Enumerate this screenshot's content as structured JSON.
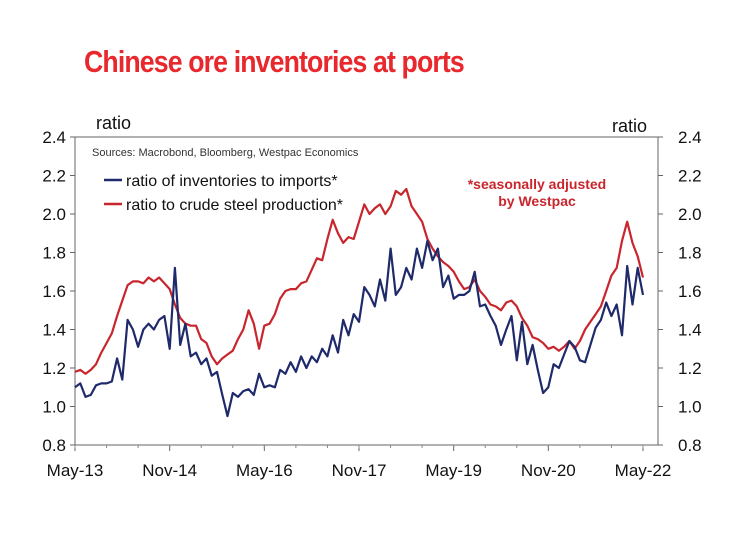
{
  "title": "Chinese ore inventories at ports",
  "colors": {
    "title": "#e8282d",
    "inventories_series": "#1f2a6b",
    "steel_series": "#c8262d",
    "annotation": "#c8262d",
    "axis": "#555555"
  },
  "chart_data": {
    "type": "line",
    "title": "Chinese ore inventories at ports",
    "ylabel_left": "ratio",
    "ylabel_right": "ratio",
    "source": "Sources: Macrobond, Bloomberg, Westpac Economics",
    "annotation": [
      "*seasonally adjusted",
      "by Westpac"
    ],
    "ylim": [
      0.8,
      2.4
    ],
    "yticks": [
      "0.8",
      "1.0",
      "1.2",
      "1.4",
      "1.6",
      "1.8",
      "2.0",
      "2.2",
      "2.4"
    ],
    "xlim": [
      "2013-05",
      "2022-05"
    ],
    "xticks": [
      "May-13",
      "Nov-14",
      "May-16",
      "Nov-17",
      "May-19",
      "Nov-20",
      "May-22"
    ],
    "legend_position": "top-left",
    "grid": false,
    "series": [
      {
        "name": "ratio of inventories to imports*",
        "color": "#1f2a6b",
        "points": [
          [
            "2013-05",
            1.1
          ],
          [
            "2013-06",
            1.12
          ],
          [
            "2013-07",
            1.05
          ],
          [
            "2013-08",
            1.06
          ],
          [
            "2013-09",
            1.11
          ],
          [
            "2013-10",
            1.12
          ],
          [
            "2013-11",
            1.12
          ],
          [
            "2013-12",
            1.13
          ],
          [
            "2014-01",
            1.25
          ],
          [
            "2014-02",
            1.14
          ],
          [
            "2014-03",
            1.45
          ],
          [
            "2014-04",
            1.4
          ],
          [
            "2014-05",
            1.31
          ],
          [
            "2014-06",
            1.4
          ],
          [
            "2014-07",
            1.43
          ],
          [
            "2014-08",
            1.4
          ],
          [
            "2014-09",
            1.45
          ],
          [
            "2014-10",
            1.47
          ],
          [
            "2014-11",
            1.3
          ],
          [
            "2014-12",
            1.72
          ],
          [
            "2015-01",
            1.32
          ],
          [
            "2015-02",
            1.43
          ],
          [
            "2015-03",
            1.26
          ],
          [
            "2015-04",
            1.28
          ],
          [
            "2015-05",
            1.22
          ],
          [
            "2015-06",
            1.25
          ],
          [
            "2015-07",
            1.16
          ],
          [
            "2015-08",
            1.18
          ],
          [
            "2015-09",
            1.06
          ],
          [
            "2015-10",
            0.95
          ],
          [
            "2015-11",
            1.07
          ],
          [
            "2015-12",
            1.05
          ],
          [
            "2016-01",
            1.08
          ],
          [
            "2016-02",
            1.09
          ],
          [
            "2016-03",
            1.06
          ],
          [
            "2016-04",
            1.17
          ],
          [
            "2016-05",
            1.1
          ],
          [
            "2016-06",
            1.11
          ],
          [
            "2016-07",
            1.1
          ],
          [
            "2016-08",
            1.19
          ],
          [
            "2016-09",
            1.17
          ],
          [
            "2016-10",
            1.23
          ],
          [
            "2016-11",
            1.18
          ],
          [
            "2016-12",
            1.26
          ],
          [
            "2017-01",
            1.2
          ],
          [
            "2017-02",
            1.26
          ],
          [
            "2017-03",
            1.23
          ],
          [
            "2017-04",
            1.3
          ],
          [
            "2017-05",
            1.26
          ],
          [
            "2017-06",
            1.37
          ],
          [
            "2017-07",
            1.28
          ],
          [
            "2017-08",
            1.45
          ],
          [
            "2017-09",
            1.37
          ],
          [
            "2017-10",
            1.48
          ],
          [
            "2017-11",
            1.44
          ],
          [
            "2017-12",
            1.62
          ],
          [
            "2018-01",
            1.58
          ],
          [
            "2018-02",
            1.52
          ],
          [
            "2018-03",
            1.66
          ],
          [
            "2018-04",
            1.55
          ],
          [
            "2018-05",
            1.82
          ],
          [
            "2018-06",
            1.58
          ],
          [
            "2018-07",
            1.62
          ],
          [
            "2018-08",
            1.72
          ],
          [
            "2018-09",
            1.66
          ],
          [
            "2018-10",
            1.82
          ],
          [
            "2018-11",
            1.72
          ],
          [
            "2018-12",
            1.86
          ],
          [
            "2019-01",
            1.76
          ],
          [
            "2019-02",
            1.82
          ],
          [
            "2019-03",
            1.62
          ],
          [
            "2019-04",
            1.68
          ],
          [
            "2019-05",
            1.56
          ],
          [
            "2019-06",
            1.58
          ],
          [
            "2019-07",
            1.58
          ],
          [
            "2019-08",
            1.6
          ],
          [
            "2019-09",
            1.7
          ],
          [
            "2019-10",
            1.52
          ],
          [
            "2019-11",
            1.53
          ],
          [
            "2019-12",
            1.47
          ],
          [
            "2020-01",
            1.42
          ],
          [
            "2020-02",
            1.32
          ],
          [
            "2020-03",
            1.4
          ],
          [
            "2020-04",
            1.47
          ],
          [
            "2020-05",
            1.24
          ],
          [
            "2020-06",
            1.44
          ],
          [
            "2020-07",
            1.22
          ],
          [
            "2020-08",
            1.32
          ],
          [
            "2020-09",
            1.19
          ],
          [
            "2020-10",
            1.07
          ],
          [
            "2020-11",
            1.1
          ],
          [
            "2020-12",
            1.22
          ],
          [
            "2021-01",
            1.2
          ],
          [
            "2021-02",
            1.27
          ],
          [
            "2021-03",
            1.34
          ],
          [
            "2021-04",
            1.31
          ],
          [
            "2021-05",
            1.24
          ],
          [
            "2021-06",
            1.23
          ],
          [
            "2021-07",
            1.32
          ],
          [
            "2021-08",
            1.41
          ],
          [
            "2021-09",
            1.45
          ],
          [
            "2021-10",
            1.54
          ],
          [
            "2021-11",
            1.47
          ],
          [
            "2021-12",
            1.53
          ],
          [
            "2022-01",
            1.37
          ],
          [
            "2022-02",
            1.73
          ],
          [
            "2022-03",
            1.53
          ],
          [
            "2022-04",
            1.72
          ],
          [
            "2022-05",
            1.58
          ]
        ]
      },
      {
        "name": "ratio to crude steel production*",
        "color": "#c8262d",
        "points": [
          [
            "2013-05",
            1.18
          ],
          [
            "2013-06",
            1.19
          ],
          [
            "2013-07",
            1.17
          ],
          [
            "2013-08",
            1.19
          ],
          [
            "2013-09",
            1.22
          ],
          [
            "2013-10",
            1.28
          ],
          [
            "2013-11",
            1.33
          ],
          [
            "2013-12",
            1.38
          ],
          [
            "2014-01",
            1.47
          ],
          [
            "2014-02",
            1.55
          ],
          [
            "2014-03",
            1.63
          ],
          [
            "2014-04",
            1.65
          ],
          [
            "2014-05",
            1.65
          ],
          [
            "2014-06",
            1.64
          ],
          [
            "2014-07",
            1.67
          ],
          [
            "2014-08",
            1.65
          ],
          [
            "2014-09",
            1.67
          ],
          [
            "2014-10",
            1.64
          ],
          [
            "2014-11",
            1.61
          ],
          [
            "2014-12",
            1.53
          ],
          [
            "2015-01",
            1.46
          ],
          [
            "2015-02",
            1.43
          ],
          [
            "2015-03",
            1.42
          ],
          [
            "2015-04",
            1.42
          ],
          [
            "2015-05",
            1.35
          ],
          [
            "2015-06",
            1.33
          ],
          [
            "2015-07",
            1.26
          ],
          [
            "2015-08",
            1.22
          ],
          [
            "2015-09",
            1.25
          ],
          [
            "2015-10",
            1.27
          ],
          [
            "2015-11",
            1.29
          ],
          [
            "2015-12",
            1.35
          ],
          [
            "2016-01",
            1.4
          ],
          [
            "2016-02",
            1.5
          ],
          [
            "2016-03",
            1.43
          ],
          [
            "2016-04",
            1.3
          ],
          [
            "2016-05",
            1.42
          ],
          [
            "2016-06",
            1.43
          ],
          [
            "2016-07",
            1.48
          ],
          [
            "2016-08",
            1.56
          ],
          [
            "2016-09",
            1.6
          ],
          [
            "2016-10",
            1.61
          ],
          [
            "2016-11",
            1.61
          ],
          [
            "2016-12",
            1.64
          ],
          [
            "2017-01",
            1.65
          ],
          [
            "2017-02",
            1.71
          ],
          [
            "2017-03",
            1.77
          ],
          [
            "2017-04",
            1.76
          ],
          [
            "2017-05",
            1.87
          ],
          [
            "2017-06",
            1.97
          ],
          [
            "2017-07",
            1.9
          ],
          [
            "2017-08",
            1.85
          ],
          [
            "2017-09",
            1.88
          ],
          [
            "2017-10",
            1.87
          ],
          [
            "2017-11",
            1.96
          ],
          [
            "2017-12",
            2.05
          ],
          [
            "2018-01",
            2.0
          ],
          [
            "2018-02",
            2.03
          ],
          [
            "2018-03",
            2.05
          ],
          [
            "2018-04",
            2.0
          ],
          [
            "2018-05",
            2.04
          ],
          [
            "2018-06",
            2.12
          ],
          [
            "2018-07",
            2.1
          ],
          [
            "2018-08",
            2.13
          ],
          [
            "2018-09",
            2.04
          ],
          [
            "2018-10",
            2.0
          ],
          [
            "2018-11",
            1.96
          ],
          [
            "2018-12",
            1.87
          ],
          [
            "2019-01",
            1.82
          ],
          [
            "2019-02",
            1.78
          ],
          [
            "2019-03",
            1.75
          ],
          [
            "2019-04",
            1.73
          ],
          [
            "2019-05",
            1.7
          ],
          [
            "2019-06",
            1.65
          ],
          [
            "2019-07",
            1.61
          ],
          [
            "2019-08",
            1.62
          ],
          [
            "2019-09",
            1.66
          ],
          [
            "2019-10",
            1.6
          ],
          [
            "2019-11",
            1.57
          ],
          [
            "2019-12",
            1.53
          ],
          [
            "2020-01",
            1.52
          ],
          [
            "2020-02",
            1.5
          ],
          [
            "2020-03",
            1.54
          ],
          [
            "2020-04",
            1.55
          ],
          [
            "2020-05",
            1.52
          ],
          [
            "2020-06",
            1.46
          ],
          [
            "2020-07",
            1.42
          ],
          [
            "2020-08",
            1.36
          ],
          [
            "2020-09",
            1.35
          ],
          [
            "2020-10",
            1.33
          ],
          [
            "2020-11",
            1.3
          ],
          [
            "2020-12",
            1.31
          ],
          [
            "2021-01",
            1.29
          ],
          [
            "2021-02",
            1.31
          ],
          [
            "2021-03",
            1.34
          ],
          [
            "2021-04",
            1.3
          ],
          [
            "2021-05",
            1.34
          ],
          [
            "2021-06",
            1.4
          ],
          [
            "2021-07",
            1.44
          ],
          [
            "2021-08",
            1.48
          ],
          [
            "2021-09",
            1.52
          ],
          [
            "2021-10",
            1.6
          ],
          [
            "2021-11",
            1.68
          ],
          [
            "2021-12",
            1.72
          ],
          [
            "2022-01",
            1.86
          ],
          [
            "2022-02",
            1.96
          ],
          [
            "2022-03",
            1.85
          ],
          [
            "2022-04",
            1.78
          ],
          [
            "2022-05",
            1.67
          ]
        ]
      }
    ]
  }
}
